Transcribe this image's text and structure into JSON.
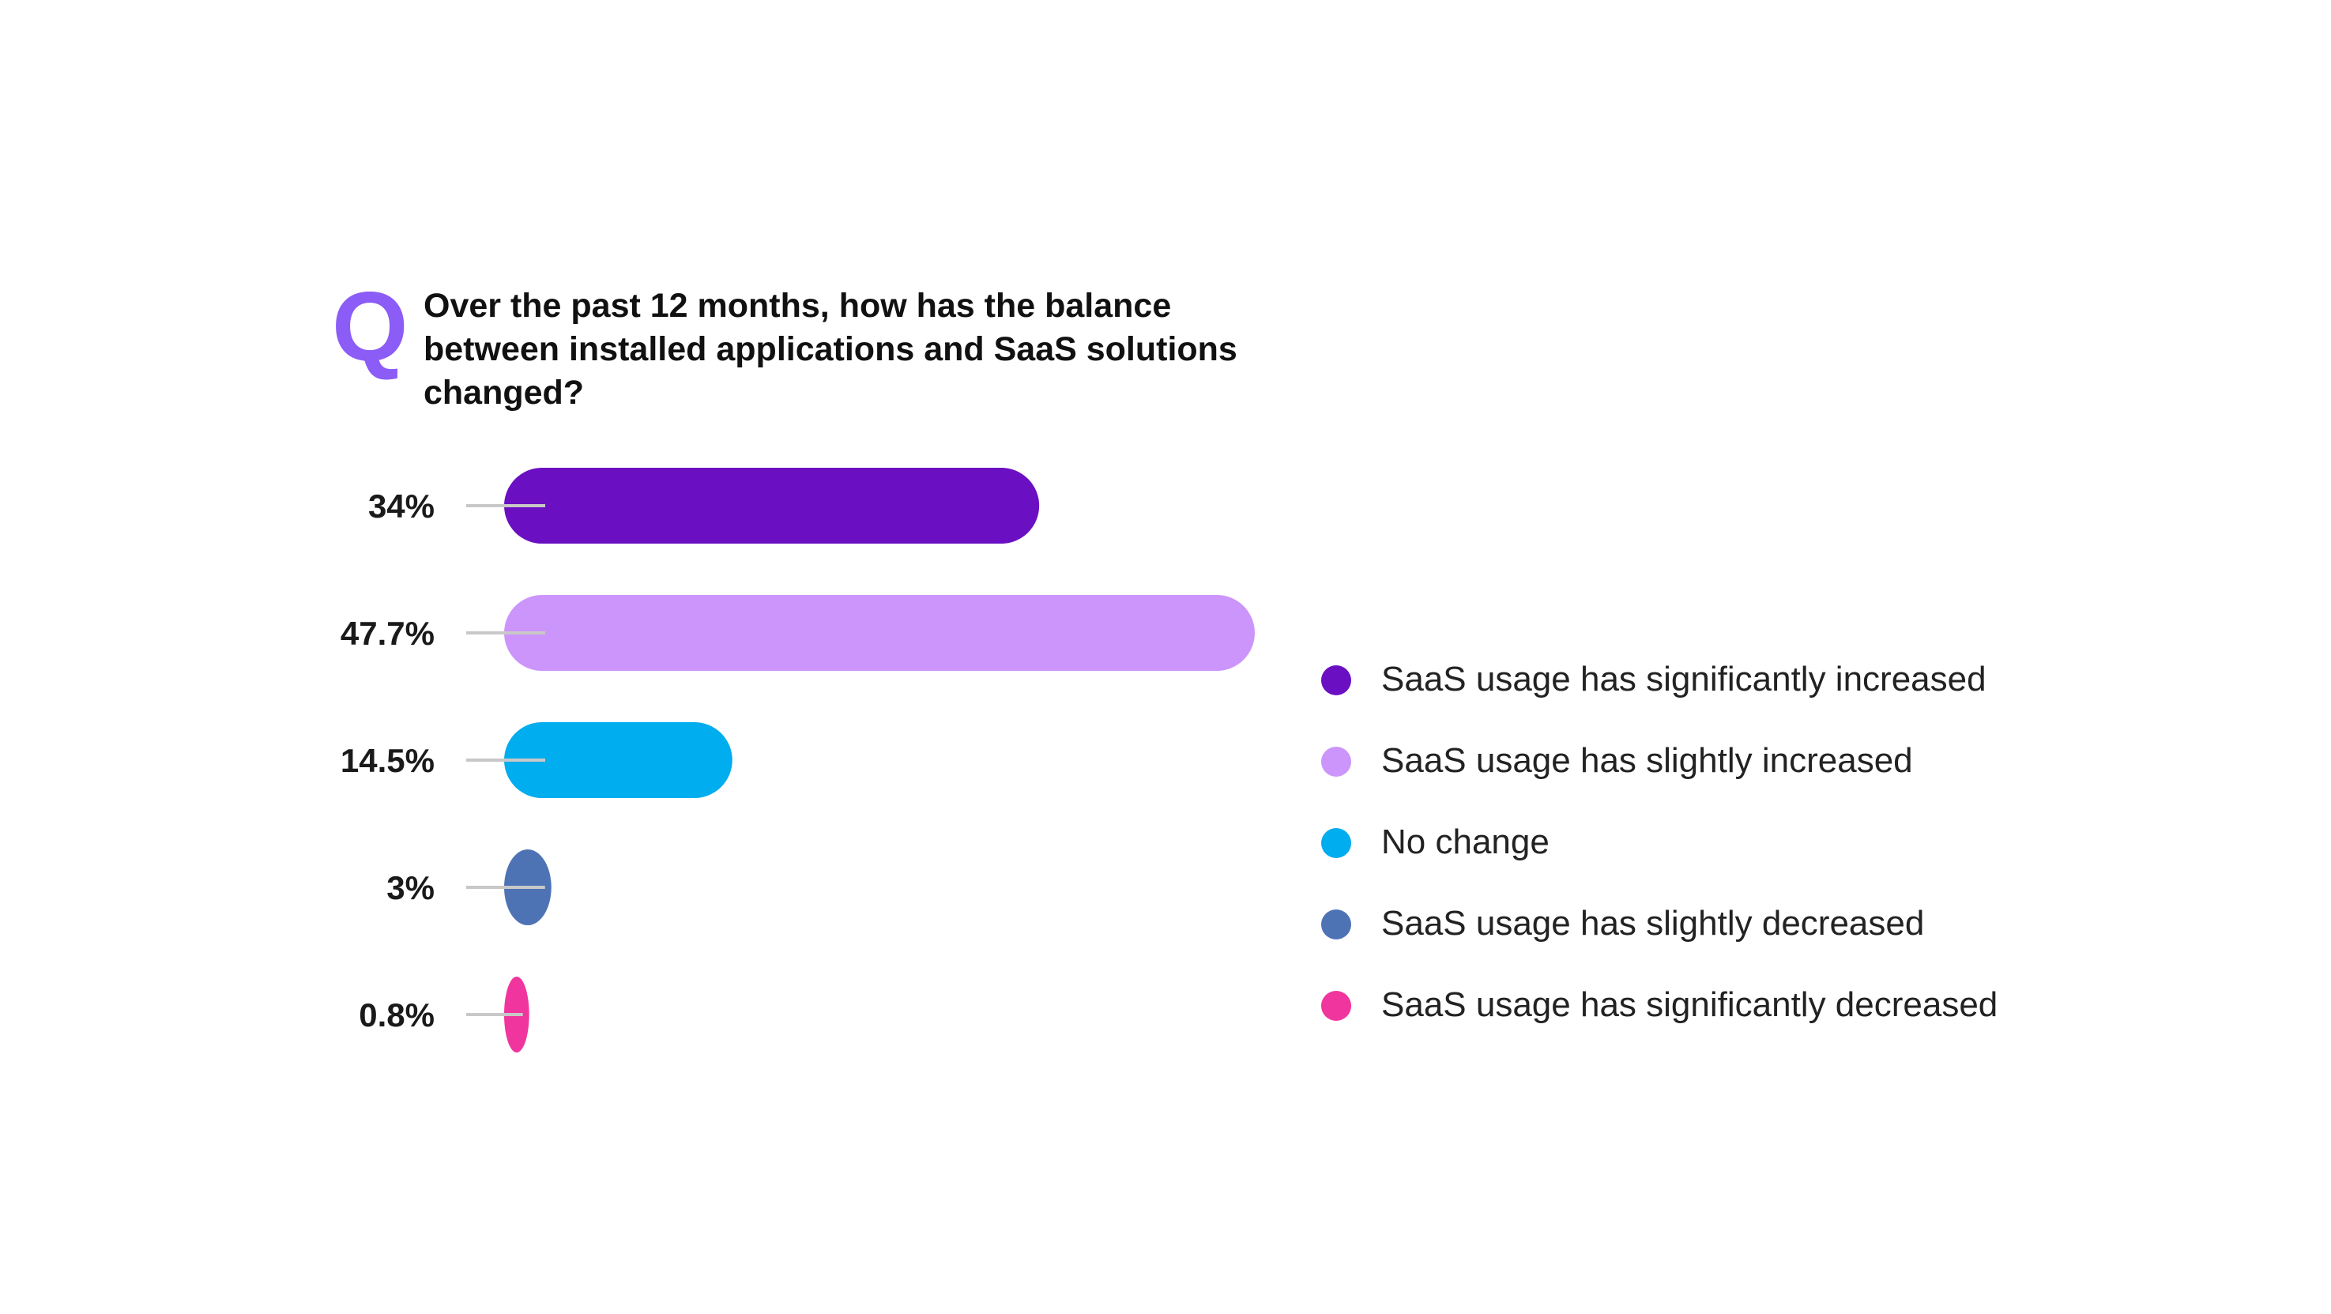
{
  "question": {
    "letter": "Q",
    "text": "Over the past 12 months, how has the balance between installed applications and SaaS solutions changed?"
  },
  "colors": {
    "accent": "#8b5cf6",
    "connector": "#c8c8c8"
  },
  "chart_data": {
    "type": "bar",
    "orientation": "horizontal",
    "title": "Over the past 12 months, how has the balance between installed applications and SaaS solutions changed?",
    "categories": [
      "SaaS usage has significantly increased",
      "SaaS usage has slightly increased",
      "No change",
      "SaaS usage has slightly decreased",
      "SaaS usage has significantly decreased"
    ],
    "values": [
      34,
      47.7,
      14.5,
      3,
      0.8
    ],
    "value_labels": [
      "34%",
      "47.7%",
      "14.5%",
      "3%",
      "0.8%"
    ],
    "colors": [
      "#6b0fc2",
      "#cc95fb",
      "#00adee",
      "#4d73b5",
      "#f0359e"
    ],
    "unit": "%",
    "xlim": [
      0,
      47.7
    ],
    "grid": false,
    "legend_position": "right"
  }
}
